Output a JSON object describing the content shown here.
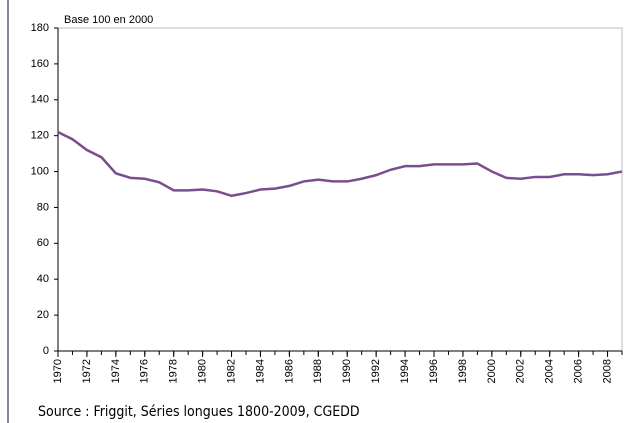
{
  "chart_data": {
    "type": "line",
    "subtitle": "Base 100 en 2000",
    "source": "Source : Friggit, Séries longues 1800-2009, CGEDD",
    "x": [
      1970,
      1971,
      1972,
      1973,
      1974,
      1975,
      1976,
      1977,
      1978,
      1979,
      1980,
      1981,
      1982,
      1983,
      1984,
      1985,
      1986,
      1987,
      1988,
      1989,
      1990,
      1991,
      1992,
      1993,
      1994,
      1995,
      1996,
      1997,
      1998,
      1999,
      2000,
      2001,
      2002,
      2003,
      2004,
      2005,
      2006,
      2007,
      2008,
      2009
    ],
    "series": [
      {
        "color": "#7a4e8e",
        "values": [
          122,
          118,
          112,
          108,
          99,
          96.5,
          96,
          94,
          89.5,
          89.5,
          90,
          89,
          86.5,
          88,
          90,
          90.5,
          92,
          94.5,
          95.5,
          94.5,
          94.5,
          96,
          98,
          101,
          103,
          103,
          104,
          104,
          104,
          104.5,
          100,
          96.5,
          96,
          97,
          97,
          98.5,
          98.5,
          98,
          98.5,
          100
        ]
      }
    ],
    "xlim": [
      1970,
      2009
    ],
    "xticks": [
      1970,
      1972,
      1974,
      1976,
      1978,
      1980,
      1982,
      1984,
      1986,
      1988,
      1990,
      1992,
      1994,
      1996,
      1998,
      2000,
      2002,
      2004,
      2006,
      2008
    ],
    "ylim": [
      0,
      180
    ],
    "yticks": [
      0,
      20,
      40,
      60,
      80,
      100,
      120,
      140,
      160,
      180
    ]
  }
}
